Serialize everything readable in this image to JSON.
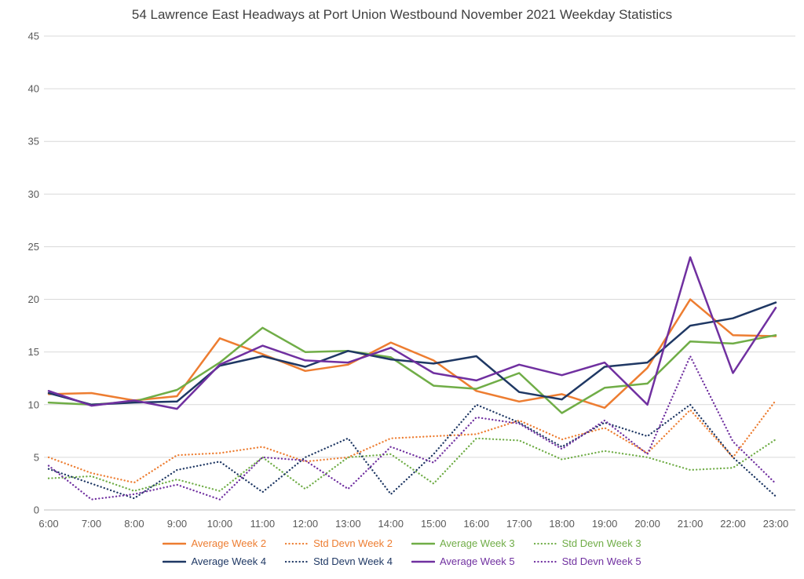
{
  "chart_data": {
    "type": "line",
    "title": "54 Lawrence East Headways at Port Union Westbound November 2021 Weekday Statistics",
    "xlabel": "",
    "ylabel": "",
    "ylim": [
      0,
      45
    ],
    "yticks": [
      0,
      5,
      10,
      15,
      20,
      25,
      30,
      35,
      40,
      45
    ],
    "grid": true,
    "legend_position": "bottom",
    "categories": [
      "6:00",
      "7:00",
      "8:00",
      "9:00",
      "10:00",
      "11:00",
      "12:00",
      "13:00",
      "14:00",
      "15:00",
      "16:00",
      "17:00",
      "18:00",
      "19:00",
      "20:00",
      "21:00",
      "22:00",
      "23:00"
    ],
    "series": [
      {
        "name": "Average Week 2",
        "color": "#ED7D31",
        "style": "solid",
        "values": [
          11.0,
          11.1,
          10.4,
          10.8,
          16.3,
          14.8,
          13.2,
          13.8,
          15.9,
          14.2,
          11.3,
          10.3,
          11.0,
          9.7,
          13.5,
          20.0,
          16.6,
          16.5
        ]
      },
      {
        "name": "Std Devn Week 2",
        "color": "#ED7D31",
        "style": "dotted",
        "values": [
          5.0,
          3.5,
          2.6,
          5.2,
          5.4,
          6.0,
          4.6,
          5.0,
          6.8,
          7.0,
          7.2,
          8.5,
          6.7,
          7.8,
          5.4,
          9.5,
          5.0,
          10.4
        ]
      },
      {
        "name": "Average Week 3",
        "color": "#70AD47",
        "style": "solid",
        "values": [
          10.2,
          10.0,
          10.3,
          11.4,
          14.0,
          17.3,
          15.0,
          15.1,
          14.5,
          11.8,
          11.5,
          13.0,
          9.2,
          11.6,
          12.0,
          16.0,
          15.8,
          16.6
        ]
      },
      {
        "name": "Std Devn Week 3",
        "color": "#70AD47",
        "style": "dotted",
        "values": [
          3.0,
          3.2,
          1.8,
          2.9,
          1.8,
          5.0,
          2.0,
          5.0,
          5.3,
          2.5,
          6.8,
          6.6,
          4.8,
          5.6,
          5.0,
          3.8,
          4.0,
          6.7
        ]
      },
      {
        "name": "Average Week 4",
        "color": "#1F3864",
        "style": "solid",
        "values": [
          11.1,
          10.0,
          10.2,
          10.3,
          13.7,
          14.6,
          13.6,
          15.1,
          14.3,
          13.9,
          14.6,
          11.2,
          10.5,
          13.6,
          14.0,
          17.5,
          18.2,
          19.7
        ]
      },
      {
        "name": "Std Devn Week 4",
        "color": "#1F3864",
        "style": "dotted",
        "values": [
          3.9,
          2.5,
          1.1,
          3.8,
          4.6,
          1.7,
          5.0,
          6.8,
          1.5,
          5.3,
          10.0,
          8.3,
          6.0,
          8.3,
          7.0,
          10.0,
          5.0,
          1.3
        ]
      },
      {
        "name": "Average Week 5",
        "color": "#7030A0",
        "style": "solid",
        "values": [
          11.3,
          9.9,
          10.4,
          9.6,
          13.8,
          15.6,
          14.2,
          14.0,
          15.4,
          13.0,
          12.3,
          13.8,
          12.8,
          14.0,
          10.0,
          24.0,
          13.0,
          19.2
        ]
      },
      {
        "name": "Std Devn Week 5",
        "color": "#7030A0",
        "style": "dotted",
        "values": [
          4.2,
          1.0,
          1.5,
          2.4,
          1.0,
          5.0,
          4.7,
          2.0,
          6.0,
          4.5,
          8.8,
          8.2,
          5.8,
          8.5,
          5.3,
          14.6,
          6.5,
          2.5
        ]
      }
    ],
    "legend_items_per_row": 4
  },
  "colors": {
    "background": "#FFFFFF",
    "title": "#404040",
    "axis_labels": "#595959",
    "gridline": "#D9D9D9",
    "axis_line": "#BFBFBF"
  }
}
